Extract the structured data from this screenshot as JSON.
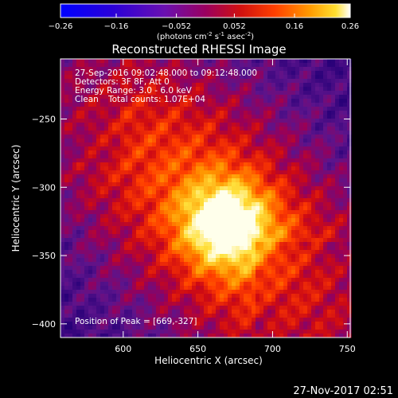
{
  "chart_data": {
    "type": "heatmap",
    "title": "Reconstructed RHESSI Image",
    "xlabel": "Heliocentric X (arcsec)",
    "ylabel": "Heliocentric Y (arcsec)",
    "xlim": [
      558,
      752
    ],
    "ylim": [
      -410,
      -206
    ],
    "x_ticks": [
      600,
      650,
      700,
      750
    ],
    "y_ticks": [
      -250,
      -300,
      -350,
      -400
    ],
    "colorbar": {
      "range": [
        -0.26,
        0.26
      ],
      "ticks": [
        -0.26,
        -0.16,
        -0.052,
        0.052,
        0.16,
        0.26
      ],
      "tick_labels": [
        "-0.26",
        "-0.16",
        "-0.052",
        "0.052",
        "0.16",
        "0.26"
      ],
      "units_main": "(photons cm",
      "units_exp1": "-2",
      "units_mid1": " s",
      "units_exp2": "-1",
      "units_mid2": " asec",
      "units_exp3": "-2",
      "units_end": ")"
    },
    "annotations": {
      "time_range": "27-Sep-2016 09:02:48.000 to 09:12:48.000",
      "detectors": "Detectors: 3F 8F, Att 0",
      "energy": "Energy Range: 3.0 - 6.0 keV",
      "clean_label": "Clean",
      "total_counts": "Total counts: 1.07E+04",
      "peak_position": "Position of Peak = [669,-327]"
    },
    "peak": [
      669,
      -327
    ],
    "colormap": "hot-metal",
    "colors": {
      "background": "#000000",
      "axis": "#ffffff"
    }
  },
  "plot_date": "27-Nov-2017 02:51"
}
